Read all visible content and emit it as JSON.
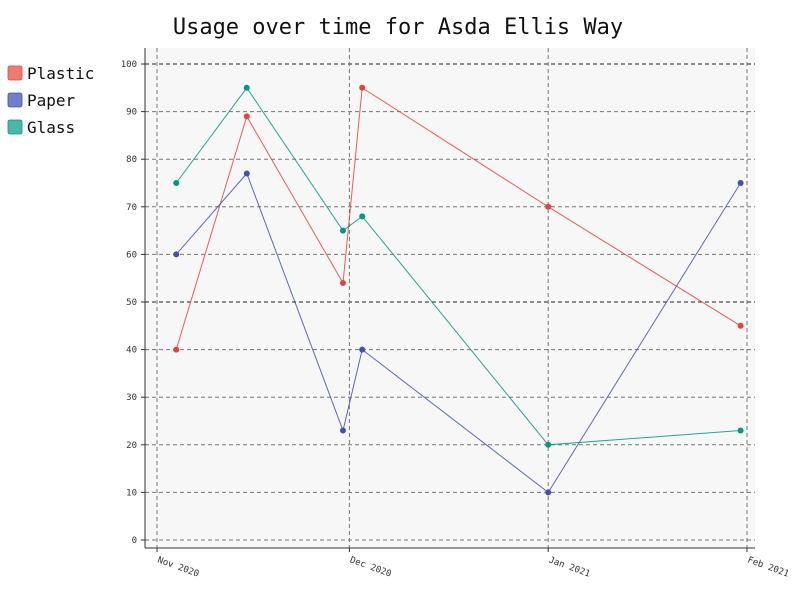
{
  "chart_data": {
    "type": "line",
    "title": "Usage over time for Asda Ellis Way",
    "xlabel": "",
    "ylabel": "",
    "ylim": [
      0,
      100
    ],
    "yticks": [
      0,
      10,
      20,
      30,
      40,
      50,
      60,
      70,
      80,
      90,
      100
    ],
    "xticks": [
      {
        "date": "2020-11-01",
        "label": "Nov 2020"
      },
      {
        "date": "2020-12-01",
        "label": "Dec 2020"
      },
      {
        "date": "2021-01-01",
        "label": "Jan 2021"
      },
      {
        "date": "2021-02-01",
        "label": "Feb 2021"
      }
    ],
    "x": [
      "2020-11-04",
      "2020-11-15",
      "2020-11-30",
      "2020-12-03",
      "2021-01-01",
      "2021-01-31"
    ],
    "grid": true,
    "legend": "top-left",
    "series": [
      {
        "name": "Plastic",
        "color": "#e8433a",
        "legend_color": "#f07b72",
        "values": [
          40,
          89,
          54,
          95,
          70,
          45
        ]
      },
      {
        "name": "Paper",
        "color": "#3f51b5",
        "legend_color": "#7080c8",
        "values": [
          60,
          77,
          23,
          40,
          10,
          75
        ]
      },
      {
        "name": "Glass",
        "color": "#009688",
        "legend_color": "#4db6a9",
        "values": [
          75,
          95,
          65,
          68,
          20,
          23
        ]
      }
    ]
  }
}
